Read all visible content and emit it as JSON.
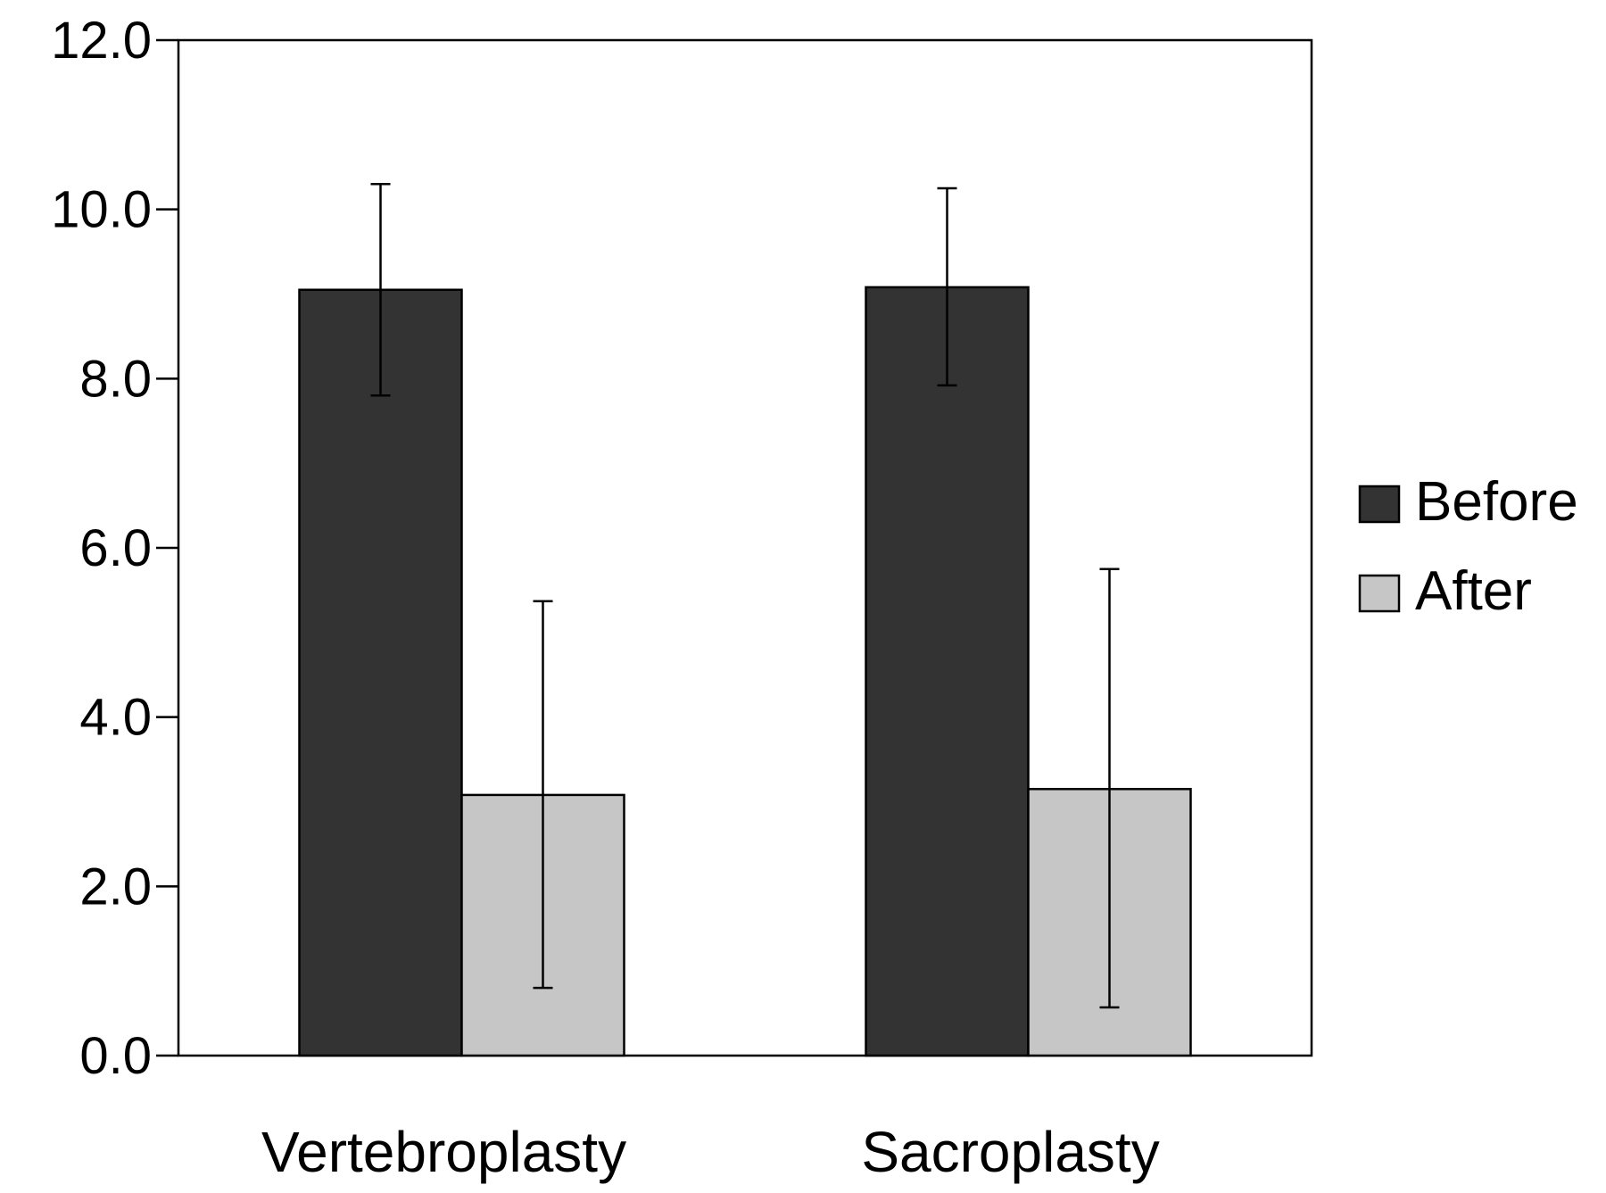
{
  "chart_data": {
    "type": "bar",
    "title": "",
    "xlabel": "",
    "ylabel": "",
    "categories": [
      "Vertebroplasty",
      "Sacroplasty"
    ],
    "series": [
      {
        "name": "Before",
        "color": "#333333",
        "values": [
          9.05,
          9.08
        ],
        "error_low": [
          7.8,
          7.92
        ],
        "error_high": [
          10.3,
          10.25
        ]
      },
      {
        "name": "After",
        "color": "#c6c6c6",
        "values": [
          3.08,
          3.15
        ],
        "error_low": [
          0.8,
          0.57
        ],
        "error_high": [
          5.37,
          5.75
        ]
      }
    ],
    "ylim": [
      0,
      12
    ],
    "yticks": [
      "0.0",
      "2.0",
      "4.0",
      "6.0",
      "8.0",
      "10.0",
      "12.0"
    ],
    "grid": false,
    "legend_position": "right"
  }
}
